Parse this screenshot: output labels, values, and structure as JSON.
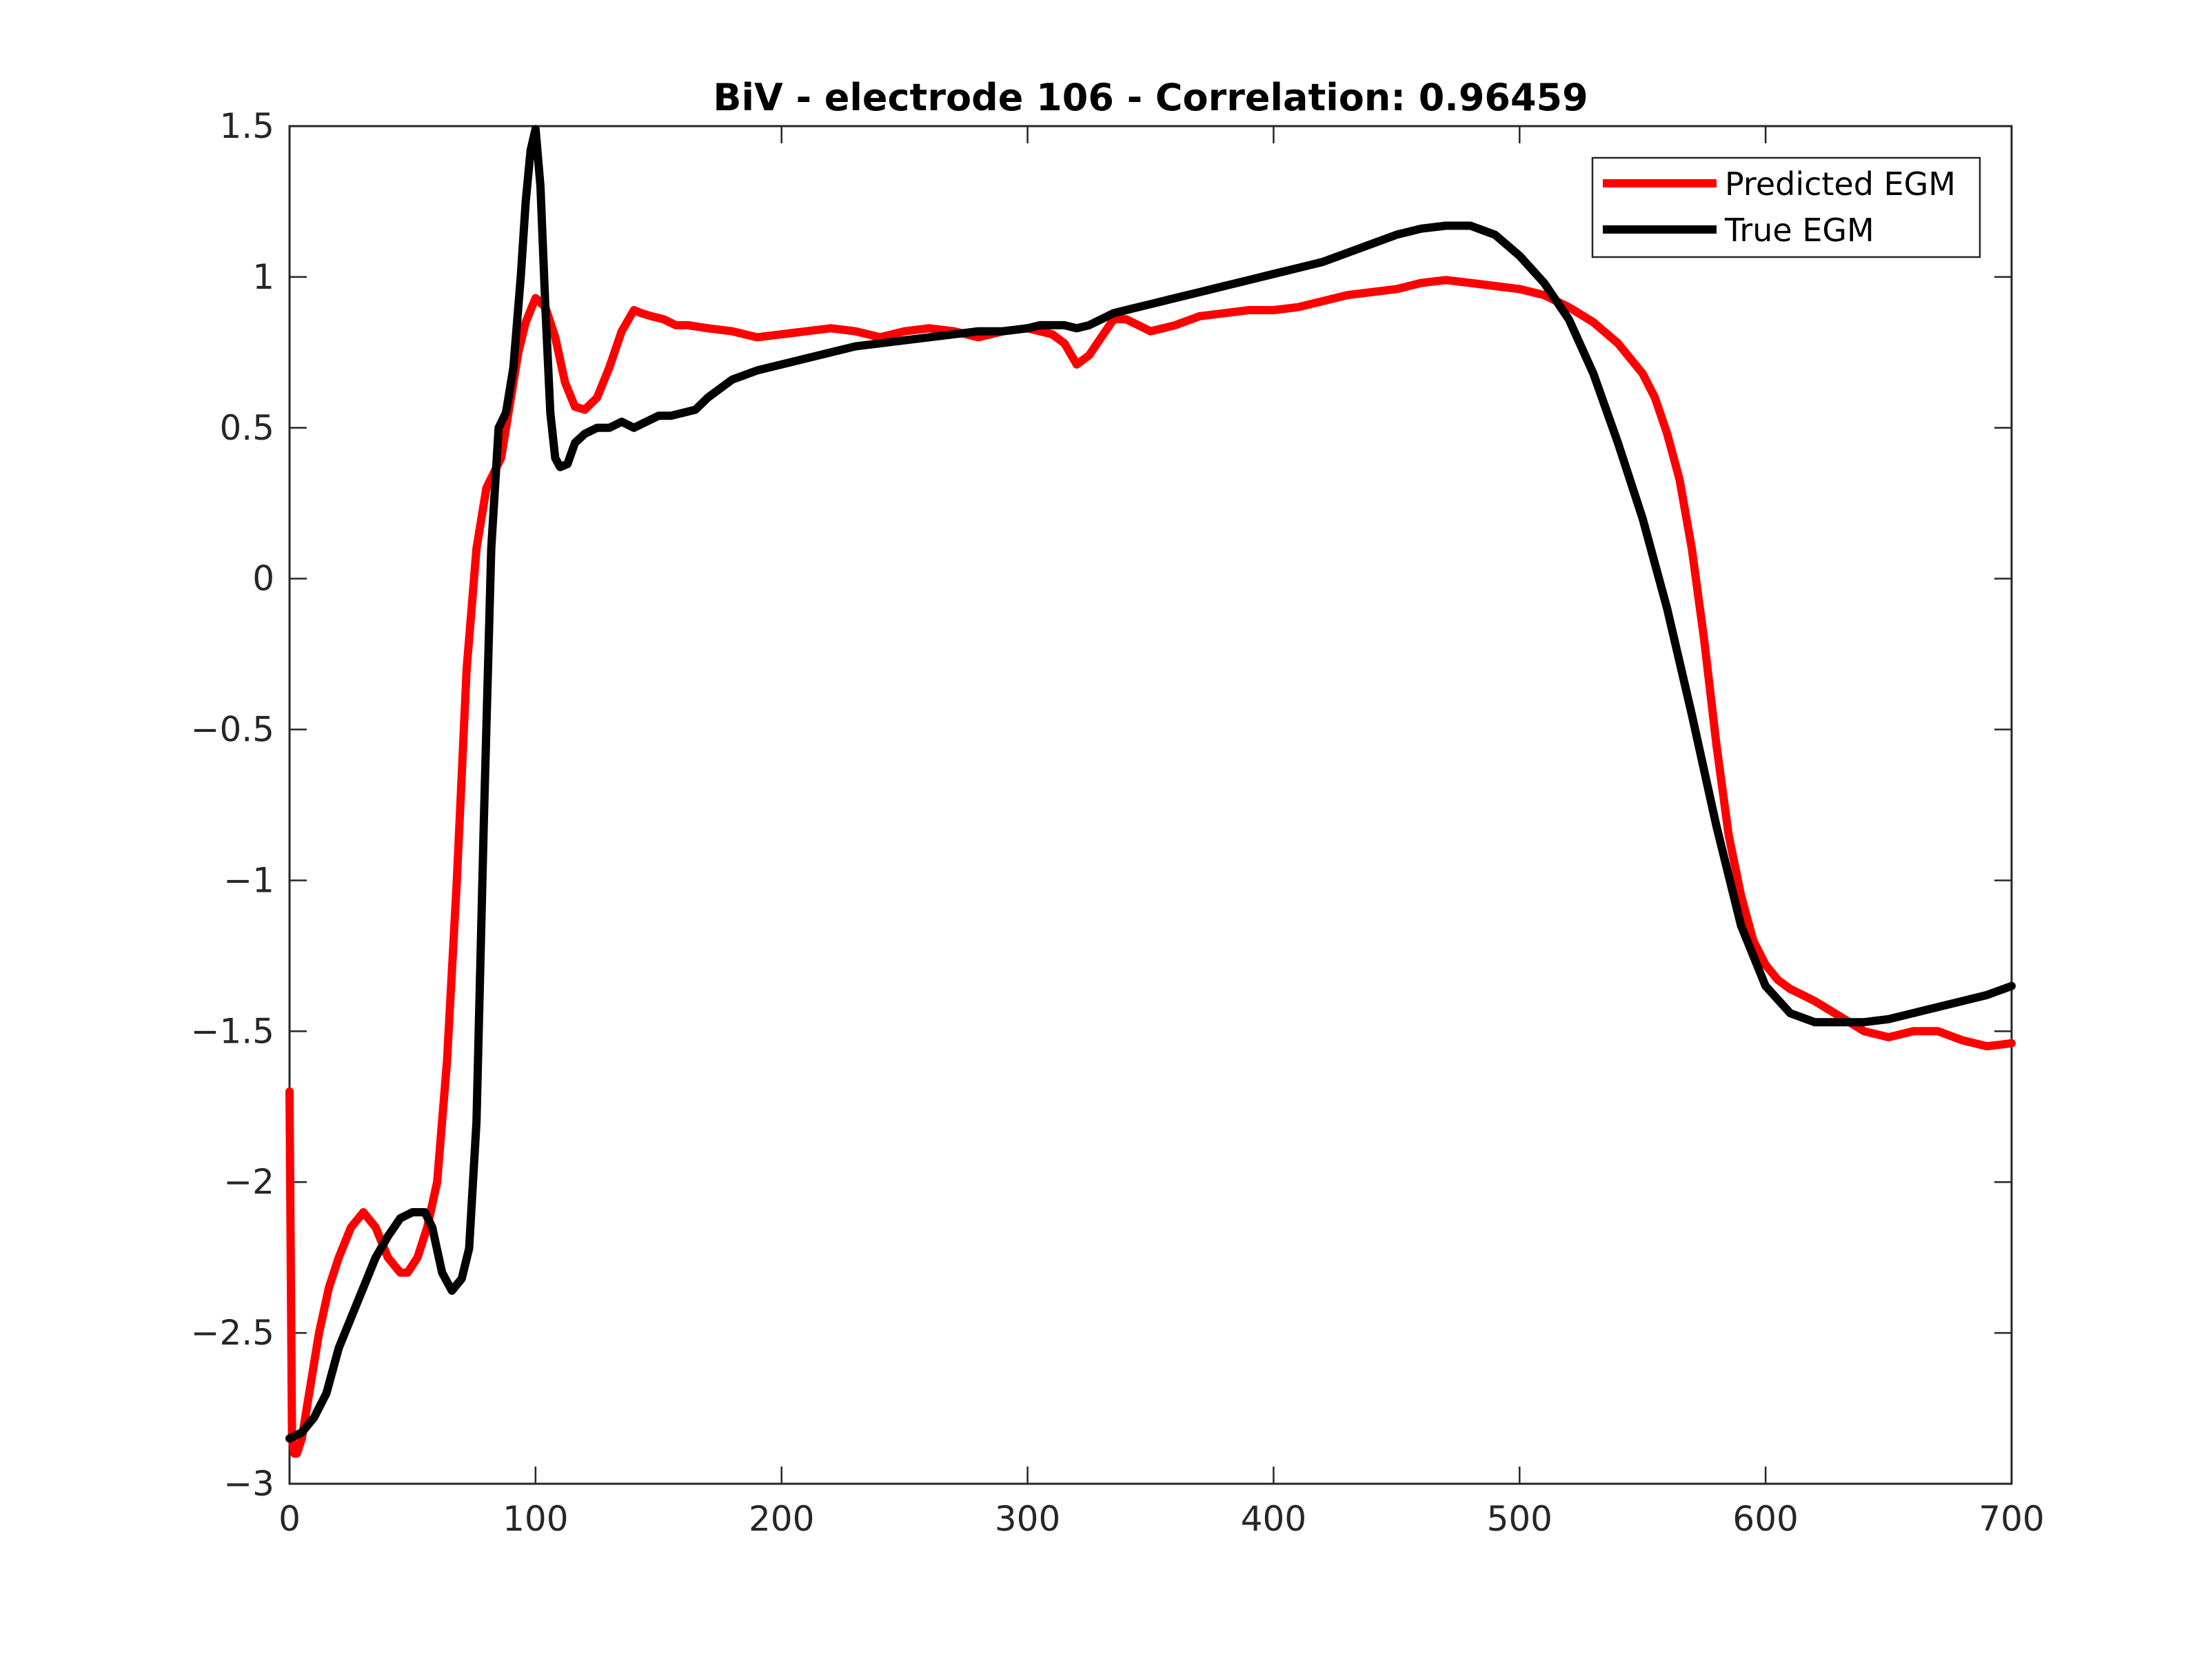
{
  "chart_data": {
    "type": "line",
    "title": "BiV - electrode 106 - Correlation: 0.96459",
    "xlabel": "",
    "ylabel": "",
    "xlim": [
      0,
      700
    ],
    "ylim": [
      -3,
      1.5
    ],
    "xticks": [
      0,
      100,
      200,
      300,
      400,
      500,
      600,
      700
    ],
    "yticks": [
      -3,
      -2.5,
      -2,
      -1.5,
      -1,
      -0.5,
      0,
      0.5,
      1,
      1.5
    ],
    "xtick_labels": [
      "0",
      "100",
      "200",
      "300",
      "400",
      "500",
      "600",
      "700"
    ],
    "ytick_labels": [
      "−3",
      "−2.5",
      "−2",
      "−1.5",
      "−1",
      "−0.5",
      "0",
      "0.5",
      "1",
      "1.5"
    ],
    "grid": false,
    "legend": "top-right",
    "series": [
      {
        "name": "Predicted EGM",
        "color": "#ff0000",
        "x": [
          0,
          1,
          2,
          3,
          5,
          8,
          12,
          16,
          20,
          25,
          30,
          35,
          40,
          45,
          48,
          52,
          56,
          60,
          64,
          68,
          72,
          76,
          80,
          83,
          86,
          88,
          90,
          93,
          96,
          100,
          104,
          108,
          112,
          116,
          120,
          125,
          130,
          135,
          140,
          143,
          147,
          152,
          157,
          162,
          170,
          180,
          190,
          200,
          210,
          220,
          230,
          240,
          250,
          260,
          270,
          280,
          290,
          300,
          305,
          310,
          315,
          320,
          325,
          330,
          335,
          340,
          345,
          350,
          360,
          370,
          380,
          390,
          400,
          410,
          420,
          430,
          440,
          450,
          460,
          470,
          480,
          490,
          500,
          510,
          520,
          530,
          540,
          550,
          555,
          560,
          565,
          570,
          575,
          580,
          585,
          590,
          595,
          600,
          605,
          610,
          615,
          620,
          630,
          640,
          650,
          660,
          670,
          680,
          690,
          700
        ],
        "y": [
          -1.7,
          -2.85,
          -2.9,
          -2.9,
          -2.85,
          -2.7,
          -2.5,
          -2.35,
          -2.25,
          -2.15,
          -2.1,
          -2.15,
          -2.25,
          -2.3,
          -2.3,
          -2.25,
          -2.15,
          -2.0,
          -1.6,
          -1.0,
          -0.3,
          0.1,
          0.3,
          0.35,
          0.4,
          0.5,
          0.6,
          0.75,
          0.85,
          0.93,
          0.9,
          0.8,
          0.65,
          0.57,
          0.56,
          0.6,
          0.7,
          0.82,
          0.89,
          0.88,
          0.87,
          0.86,
          0.84,
          0.84,
          0.83,
          0.82,
          0.8,
          0.81,
          0.82,
          0.83,
          0.82,
          0.8,
          0.82,
          0.83,
          0.82,
          0.8,
          0.82,
          0.83,
          0.82,
          0.81,
          0.78,
          0.71,
          0.74,
          0.8,
          0.86,
          0.86,
          0.84,
          0.82,
          0.84,
          0.87,
          0.88,
          0.89,
          0.89,
          0.9,
          0.92,
          0.94,
          0.95,
          0.96,
          0.98,
          0.99,
          0.98,
          0.97,
          0.96,
          0.94,
          0.9,
          0.85,
          0.78,
          0.68,
          0.6,
          0.48,
          0.33,
          0.1,
          -0.2,
          -0.55,
          -0.85,
          -1.05,
          -1.2,
          -1.28,
          -1.33,
          -1.36,
          -1.38,
          -1.4,
          -1.45,
          -1.5,
          -1.52,
          -1.5,
          -1.5,
          -1.53,
          -1.55,
          -1.54
        ]
      },
      {
        "name": "True EGM",
        "color": "#000000",
        "x": [
          0,
          5,
          10,
          15,
          20,
          25,
          30,
          35,
          40,
          45,
          50,
          55,
          58,
          62,
          66,
          70,
          73,
          76,
          79,
          82,
          85,
          88,
          91,
          94,
          96,
          98,
          100,
          102,
          104,
          106,
          108,
          110,
          113,
          116,
          120,
          125,
          130,
          135,
          140,
          145,
          150,
          155,
          160,
          165,
          170,
          180,
          190,
          200,
          210,
          220,
          230,
          240,
          250,
          260,
          270,
          280,
          290,
          300,
          305,
          310,
          315,
          320,
          325,
          330,
          335,
          340,
          350,
          360,
          370,
          380,
          390,
          400,
          410,
          420,
          430,
          440,
          450,
          460,
          470,
          480,
          490,
          500,
          510,
          520,
          530,
          540,
          550,
          560,
          570,
          580,
          590,
          600,
          610,
          620,
          630,
          640,
          650,
          660,
          670,
          680,
          690,
          700
        ],
        "y": [
          -2.85,
          -2.83,
          -2.78,
          -2.7,
          -2.55,
          -2.45,
          -2.35,
          -2.25,
          -2.18,
          -2.12,
          -2.1,
          -2.1,
          -2.15,
          -2.3,
          -2.36,
          -2.32,
          -2.22,
          -1.8,
          -0.8,
          0.1,
          0.5,
          0.55,
          0.7,
          1.0,
          1.25,
          1.42,
          1.49,
          1.3,
          0.9,
          0.55,
          0.4,
          0.37,
          0.38,
          0.45,
          0.48,
          0.5,
          0.5,
          0.52,
          0.5,
          0.52,
          0.54,
          0.54,
          0.55,
          0.56,
          0.6,
          0.66,
          0.69,
          0.71,
          0.73,
          0.75,
          0.77,
          0.78,
          0.79,
          0.8,
          0.81,
          0.82,
          0.82,
          0.83,
          0.84,
          0.84,
          0.84,
          0.83,
          0.84,
          0.86,
          0.88,
          0.89,
          0.91,
          0.93,
          0.95,
          0.97,
          0.99,
          1.01,
          1.03,
          1.05,
          1.08,
          1.11,
          1.14,
          1.16,
          1.17,
          1.17,
          1.14,
          1.07,
          0.98,
          0.86,
          0.68,
          0.45,
          0.2,
          -0.1,
          -0.45,
          -0.82,
          -1.15,
          -1.35,
          -1.44,
          -1.47,
          -1.47,
          -1.47,
          -1.46,
          -1.44,
          -1.42,
          -1.4,
          -1.38,
          -1.35
        ]
      }
    ]
  }
}
